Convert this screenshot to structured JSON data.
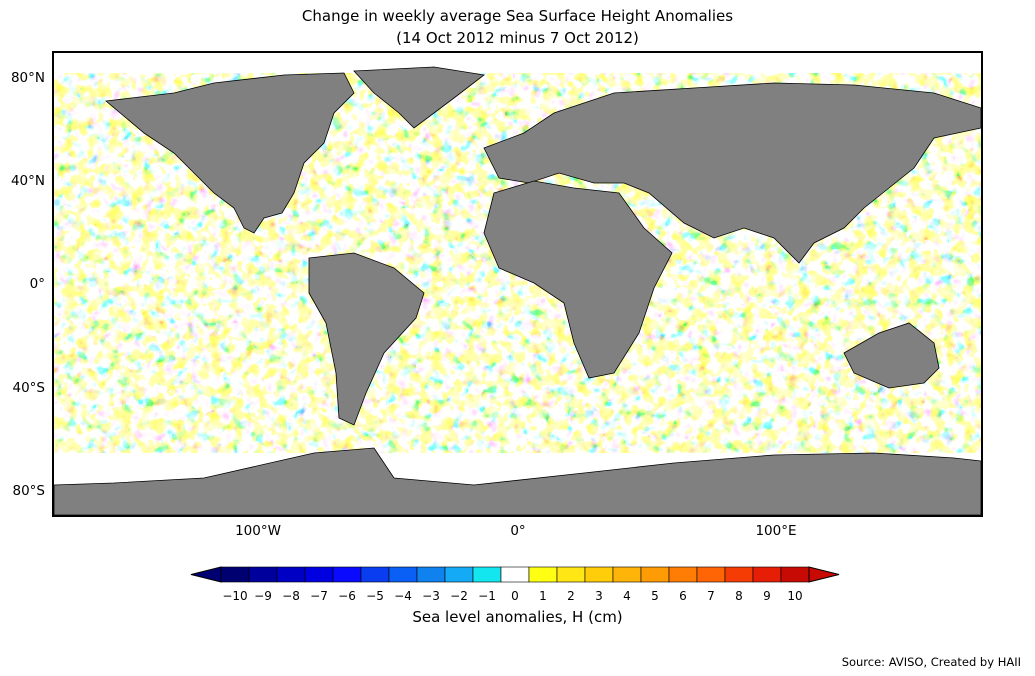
{
  "title": {
    "line1": "Change in weekly average Sea Surface Height Anomalies",
    "line2": "(14 Oct 2012 minus 7 Oct 2012)"
  },
  "map": {
    "latitude_labels": [
      "80°N",
      "40°N",
      "0°",
      "40°S",
      "80°S"
    ],
    "longitude_labels": [
      "100°W",
      "0°",
      "100°E"
    ],
    "land_color": "#808080",
    "no_data_color": "#ffffff"
  },
  "colorbar": {
    "label": "Sea level anomalies, H (cm)",
    "tick_labels": [
      "−10",
      "−9",
      "−8",
      "−7",
      "−6",
      "−5",
      "−4",
      "−3",
      "−2",
      "−1",
      "0",
      "1",
      "2",
      "3",
      "4",
      "5",
      "6",
      "7",
      "8",
      "9",
      "10"
    ],
    "colors": [
      "#000070",
      "#00009c",
      "#0000c4",
      "#0000e0",
      "#0a0aff",
      "#0a3cf0",
      "#0a5ff5",
      "#0f82f0",
      "#14aaf5",
      "#14e6f0",
      "#ffffff",
      "#ffff14",
      "#ffe614",
      "#ffcd0a",
      "#ffb40a",
      "#ff9b05",
      "#ff7d05",
      "#ff6405",
      "#f53c05",
      "#e61e05",
      "#c80a05"
    ],
    "extend": "both"
  },
  "source": "Source: AVISO, Created by HAII"
}
